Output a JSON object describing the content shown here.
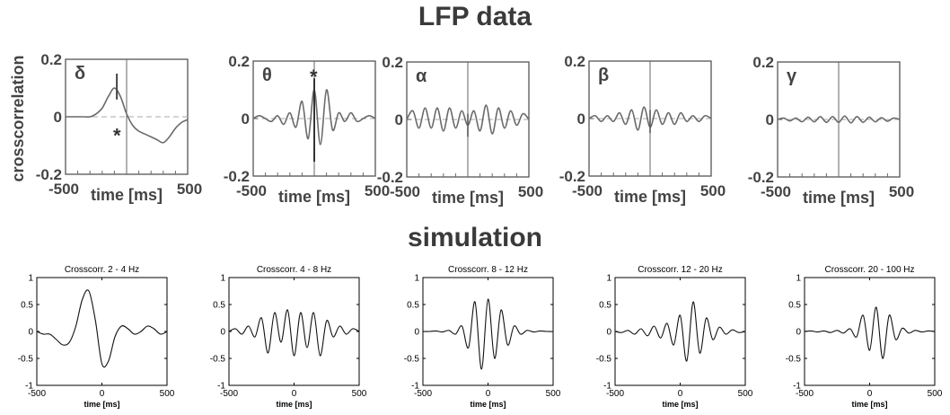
{
  "titles": {
    "lfp": "LFP data",
    "simulation": "simulation"
  },
  "lfp_panels": {
    "ylabel": "crosscorrelation",
    "xlabel": "time [ms]",
    "xlim": [
      -500,
      500
    ],
    "ylim": [
      -0.2,
      0.2
    ],
    "x_ticks": [
      "-500",
      "500"
    ],
    "y_ticks": [
      "0.2",
      "0",
      "-0.2"
    ]
  },
  "sim_panels": {
    "xlabel": "time [ms]",
    "xlim": [
      -500,
      500
    ],
    "ylim": [
      -1,
      1
    ],
    "x_ticks": [
      "-500",
      "0",
      "500"
    ],
    "y_ticks": [
      "1",
      "0.5",
      "0",
      "-0.5",
      "-1"
    ]
  },
  "chart_data": [
    {
      "type": "line",
      "group": "LFP data",
      "band_label": "δ",
      "xlabel": "time [ms]",
      "ylabel": "crosscorrelation",
      "xlim": [
        -500,
        500
      ],
      "ylim": [
        -0.2,
        0.2
      ],
      "annotations": [
        "*"
      ],
      "x": [
        -500,
        -450,
        -400,
        -350,
        -300,
        -250,
        -200,
        -150,
        -100,
        -50,
        0,
        50,
        100,
        150,
        200,
        250,
        300,
        350,
        400,
        450,
        500
      ],
      "y": [
        0.0,
        0.0,
        0.0,
        0.0,
        0.0,
        0.01,
        0.03,
        0.07,
        0.1,
        0.07,
        0.01,
        -0.03,
        -0.05,
        -0.06,
        -0.07,
        -0.08,
        -0.09,
        -0.07,
        -0.04,
        -0.02,
        -0.01
      ]
    },
    {
      "type": "line",
      "group": "LFP data",
      "band_label": "θ",
      "xlabel": "time [ms]",
      "xlim": [
        -500,
        500
      ],
      "ylim": [
        -0.2,
        0.2
      ],
      "annotations": [
        "*"
      ],
      "x": [
        -500,
        -450,
        -400,
        -350,
        -300,
        -250,
        -200,
        -150,
        -100,
        -50,
        0,
        50,
        100,
        150,
        200,
        250,
        300,
        350,
        400,
        450,
        500
      ],
      "y": [
        0.0,
        0.01,
        0.0,
        -0.01,
        0.01,
        -0.02,
        0.02,
        -0.03,
        0.06,
        -0.07,
        0.1,
        -0.09,
        0.1,
        -0.04,
        0.02,
        -0.01,
        0.02,
        -0.01,
        0.0,
        0.01,
        0.0
      ]
    },
    {
      "type": "line",
      "group": "LFP data",
      "band_label": "α",
      "xlabel": "time [ms]",
      "xlim": [
        -500,
        500
      ],
      "ylim": [
        -0.2,
        0.2
      ],
      "x": [
        -500,
        -450,
        -400,
        -350,
        -300,
        -250,
        -200,
        -150,
        -100,
        -50,
        0,
        50,
        100,
        150,
        200,
        250,
        300,
        350,
        400,
        450,
        500
      ],
      "y": [
        0.0,
        0.03,
        -0.03,
        0.04,
        -0.03,
        0.04,
        -0.04,
        0.04,
        -0.03,
        0.03,
        -0.02,
        0.03,
        -0.04,
        0.05,
        -0.05,
        0.04,
        -0.03,
        0.03,
        -0.02,
        0.02,
        0.0
      ]
    },
    {
      "type": "line",
      "group": "LFP data",
      "band_label": "β",
      "xlabel": "time [ms]",
      "xlim": [
        -500,
        500
      ],
      "ylim": [
        -0.2,
        0.2
      ],
      "x": [
        -500,
        -450,
        -400,
        -350,
        -300,
        -250,
        -200,
        -150,
        -100,
        -50,
        0,
        50,
        100,
        150,
        200,
        250,
        300,
        350,
        400,
        450,
        500
      ],
      "y": [
        0.0,
        0.01,
        -0.01,
        0.01,
        -0.01,
        0.02,
        -0.02,
        0.03,
        -0.04,
        0.04,
        -0.03,
        0.03,
        -0.02,
        0.02,
        -0.02,
        0.02,
        -0.01,
        0.01,
        -0.01,
        0.01,
        0.0
      ]
    },
    {
      "type": "line",
      "group": "LFP data",
      "band_label": "γ",
      "xlabel": "time [ms]",
      "xlim": [
        -500,
        500
      ],
      "ylim": [
        -0.2,
        0.2
      ],
      "x": [
        -500,
        -450,
        -400,
        -350,
        -300,
        -250,
        -200,
        -150,
        -100,
        -50,
        0,
        50,
        100,
        150,
        200,
        250,
        300,
        350,
        400,
        450,
        500
      ],
      "y": [
        0.0,
        0.005,
        -0.005,
        0.005,
        -0.008,
        0.008,
        -0.008,
        0.01,
        -0.01,
        0.01,
        -0.01,
        0.012,
        -0.012,
        0.01,
        -0.01,
        0.008,
        -0.008,
        0.006,
        -0.006,
        0.005,
        0.0
      ]
    },
    {
      "type": "line",
      "group": "simulation",
      "title": "Crosscorr. 2 - 4 Hz",
      "xlabel": "time [ms]",
      "xlim": [
        -500,
        500
      ],
      "ylim": [
        -1,
        1
      ],
      "x": [
        -500,
        -450,
        -400,
        -350,
        -300,
        -250,
        -200,
        -150,
        -100,
        -50,
        0,
        50,
        100,
        150,
        200,
        250,
        300,
        350,
        400,
        450,
        500
      ],
      "y": [
        0.0,
        -0.05,
        -0.05,
        -0.15,
        -0.25,
        -0.2,
        0.1,
        0.6,
        0.75,
        0.2,
        -0.6,
        -0.55,
        -0.1,
        0.1,
        0.05,
        -0.05,
        0.0,
        0.1,
        0.05,
        -0.05,
        0.0
      ]
    },
    {
      "type": "line",
      "group": "simulation",
      "title": "Crosscorr. 4 - 8 Hz",
      "xlabel": "time [ms]",
      "xlim": [
        -500,
        500
      ],
      "ylim": [
        -1,
        1
      ],
      "x": [
        -500,
        -450,
        -400,
        -350,
        -300,
        -250,
        -200,
        -150,
        -100,
        -50,
        0,
        50,
        100,
        150,
        200,
        250,
        300,
        350,
        400,
        450,
        500
      ],
      "y": [
        0.0,
        0.05,
        -0.05,
        0.1,
        -0.1,
        0.25,
        -0.4,
        0.35,
        -0.2,
        0.4,
        -0.45,
        0.35,
        -0.3,
        0.35,
        -0.45,
        0.2,
        -0.1,
        0.1,
        -0.05,
        0.05,
        0.0
      ]
    },
    {
      "type": "line",
      "group": "simulation",
      "title": "Crosscorr. 8 - 12 Hz",
      "xlabel": "time [ms]",
      "xlim": [
        -500,
        500
      ],
      "ylim": [
        -1,
        1
      ],
      "x": [
        -500,
        -450,
        -400,
        -350,
        -300,
        -250,
        -200,
        -150,
        -100,
        -50,
        0,
        50,
        100,
        150,
        200,
        250,
        300,
        350,
        400,
        450,
        500
      ],
      "y": [
        0.0,
        0.0,
        0.01,
        -0.01,
        0.02,
        -0.05,
        0.1,
        -0.3,
        0.55,
        -0.7,
        0.6,
        -0.5,
        0.4,
        -0.25,
        0.1,
        -0.05,
        0.02,
        -0.01,
        0.01,
        0.0,
        0.0
      ]
    },
    {
      "type": "line",
      "group": "simulation",
      "title": "Crosscorr. 12 - 20 Hz",
      "xlabel": "time [ms]",
      "xlim": [
        -500,
        500
      ],
      "ylim": [
        -1,
        1
      ],
      "x": [
        -500,
        -450,
        -400,
        -350,
        -300,
        -250,
        -200,
        -150,
        -100,
        -50,
        0,
        50,
        100,
        150,
        200,
        250,
        300,
        350,
        400,
        450,
        500
      ],
      "y": [
        0.0,
        -0.02,
        0.02,
        -0.05,
        0.05,
        -0.08,
        0.1,
        -0.12,
        0.15,
        -0.25,
        0.3,
        -0.55,
        0.55,
        -0.4,
        0.25,
        -0.15,
        0.08,
        -0.05,
        0.03,
        -0.02,
        0.0
      ]
    },
    {
      "type": "line",
      "group": "simulation",
      "title": "Crosscorr. 20 - 100 Hz",
      "xlabel": "time [ms]",
      "xlim": [
        -500,
        500
      ],
      "ylim": [
        -1,
        1
      ],
      "x": [
        -500,
        -450,
        -400,
        -350,
        -300,
        -250,
        -200,
        -150,
        -100,
        -50,
        0,
        50,
        100,
        150,
        200,
        250,
        300,
        350,
        400,
        450,
        500
      ],
      "y": [
        0.0,
        0.01,
        -0.01,
        0.01,
        -0.02,
        0.02,
        -0.03,
        0.05,
        -0.1,
        0.3,
        -0.35,
        0.45,
        -0.5,
        0.3,
        -0.15,
        0.06,
        -0.03,
        0.02,
        -0.01,
        0.01,
        0.0
      ]
    }
  ]
}
